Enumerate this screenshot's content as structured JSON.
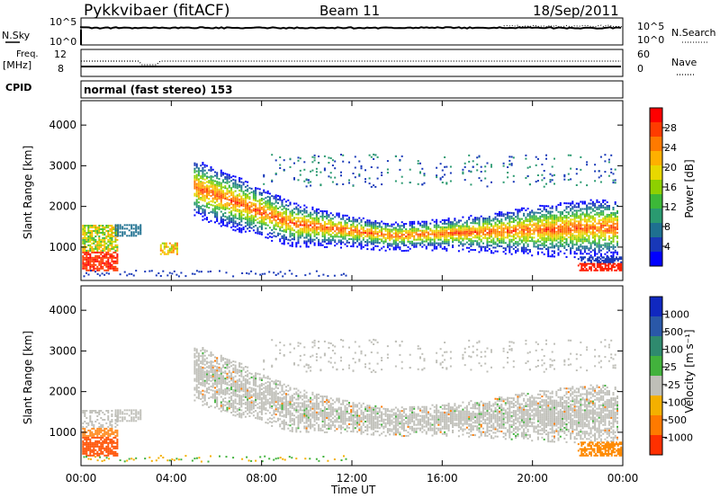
{
  "header": {
    "station": "Pykkvibaer (fitACF)",
    "beam": "Beam 11",
    "date": "18/Sep/2011"
  },
  "noise_panel": {
    "left_label": "N.Sky",
    "left_ticks": [
      "10^5",
      "10^0"
    ],
    "right_label": "N.Search",
    "right_ticks": [
      "10^5",
      "10^0"
    ]
  },
  "freq_panel": {
    "left_label_1": "Freq.",
    "left_label_2": "[MHz]",
    "left_ticks": [
      "12",
      "8"
    ],
    "right_label": "Nave",
    "right_ticks": [
      "60",
      "0"
    ]
  },
  "cpid": {
    "label": "CPID",
    "value": "normal (fast stereo) 153"
  },
  "power_colorbar": {
    "label": "Power [dB]",
    "ticks": [
      "28",
      "24",
      "20",
      "16",
      "12",
      "8",
      "4"
    ],
    "colors": [
      "#ff0000",
      "#ff3c00",
      "#ff7a00",
      "#ffb000",
      "#e8d800",
      "#8ed000",
      "#3cb838",
      "#2a9a70",
      "#1e7090",
      "#1838b8",
      "#0000ff"
    ]
  },
  "velocity_colorbar": {
    "label": "Velocity [m s⁻¹]",
    "ticks": [
      "1000",
      "500",
      "100",
      "25",
      "-25",
      "-100",
      "-500",
      "-1000"
    ],
    "colors": [
      "#1028c0",
      "#2a58a8",
      "#2f8a6e",
      "#42b23c",
      "#bfbfb8",
      "#f4b000",
      "#ff7a00",
      "#ff3000"
    ]
  },
  "time_axis": {
    "label": "Time UT",
    "ticks": [
      "00:00",
      "04:00",
      "08:00",
      "12:00",
      "16:00",
      "20:00",
      "00:00"
    ]
  },
  "range_axis": {
    "label": "Slant Range [km]",
    "ticks": [
      "4000",
      "3000",
      "2000",
      "1000"
    ]
  },
  "chart_data": [
    {
      "type": "heatmap",
      "title": "Power",
      "xlabel": "Time UT",
      "ylabel": "Slant Range [km]",
      "xlim": [
        0,
        24
      ],
      "ylim": [
        180,
        4600
      ],
      "colorbar_label": "Power [dB]",
      "colorbar_range": [
        0,
        30
      ],
      "patches": [
        {
          "t": [
            0.0,
            1.5
          ],
          "r": [
            450,
            1500
          ],
          "peak": 24
        },
        {
          "t": [
            1.5,
            2.7
          ],
          "r": [
            1300,
            1600
          ],
          "peak": 10
        },
        {
          "t": [
            3.5,
            4.3
          ],
          "r": [
            850,
            1150
          ],
          "peak": 18
        },
        {
          "t": [
            5.0,
            22.5
          ],
          "band_center": [
            2500,
            1600,
            1300,
            1400,
            1500
          ],
          "peak": 28
        },
        {
          "t": [
            22.0,
            24.0
          ],
          "r": [
            450,
            650
          ],
          "peak": 28
        }
      ]
    },
    {
      "type": "heatmap",
      "title": "Velocity",
      "xlabel": "Time UT",
      "ylabel": "Slant Range [km]",
      "xlim": [
        0,
        24
      ],
      "ylim": [
        180,
        4600
      ],
      "colorbar_label": "Velocity [m s⁻¹]",
      "colorbar_range": [
        -1000,
        1000
      ],
      "patches": [
        {
          "t": [
            0.0,
            1.5
          ],
          "r": [
            450,
            1100
          ],
          "velocity": -300
        },
        {
          "t": [
            5.0,
            22.5
          ],
          "band_center": [
            2500,
            1600,
            1300,
            1400,
            1500
          ],
          "velocity": 0
        },
        {
          "t": [
            22.0,
            24.0
          ],
          "r": [
            450,
            750
          ],
          "velocity": -400
        }
      ]
    }
  ]
}
